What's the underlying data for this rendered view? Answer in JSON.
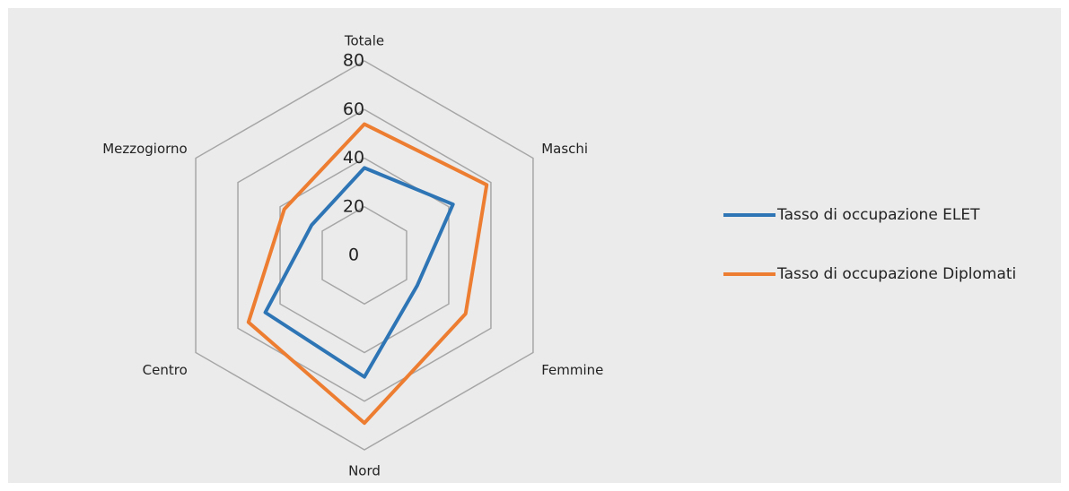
{
  "chart_data": {
    "type": "radar",
    "categories": [
      "Totale",
      "Maschi",
      "Femmine",
      "Nord",
      "Centro",
      "Mezzogiorno"
    ],
    "series": [
      {
        "name": "Tasso di occupazione ELET",
        "color": "#2e75b6",
        "values": [
          36,
          42,
          25,
          50,
          47,
          25
        ]
      },
      {
        "name": "Tasso di occupazione Diplomati",
        "color": "#ed7d31",
        "values": [
          54,
          58,
          48,
          69,
          55,
          38
        ]
      }
    ],
    "ylim": [
      0,
      80
    ],
    "yticks": [
      0,
      20,
      40,
      60,
      80
    ],
    "grid": true,
    "legend": "right"
  }
}
